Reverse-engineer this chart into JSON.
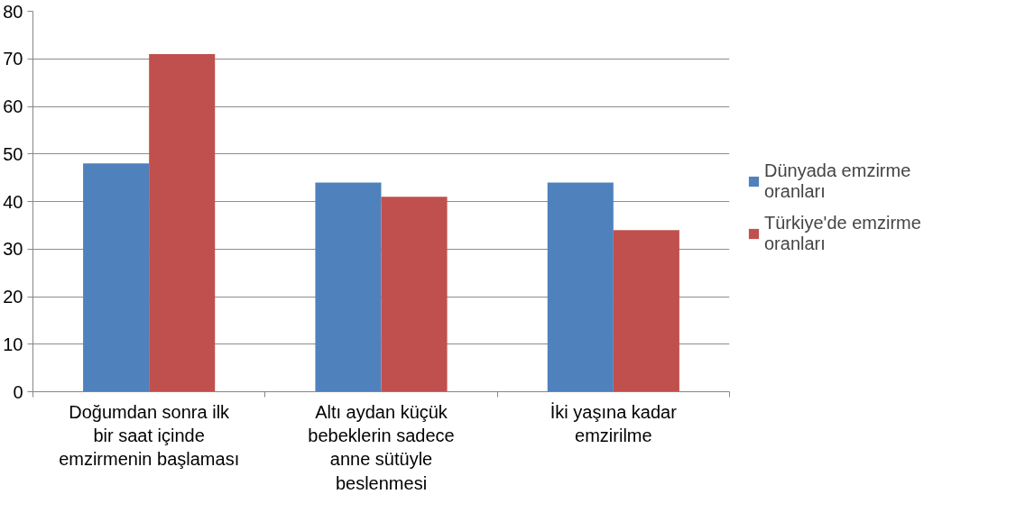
{
  "chart_data": {
    "type": "bar",
    "categories": [
      "Doğumdan sonra ilk bir saat içinde emzirmenin başlaması",
      "Altı aydan küçük bebeklerin sadece anne sütüyle beslenmesi",
      "İki yaşına kadar emzirilme"
    ],
    "series": [
      {
        "name": "Dünyada emzirme oranları",
        "color": "#4f81bd",
        "values": [
          48,
          44,
          44
        ]
      },
      {
        "name": "Türkiye'de emzirme oranları",
        "color": "#c0504d",
        "values": [
          71,
          41,
          34
        ]
      }
    ],
    "ylim": [
      0,
      80
    ],
    "yticks": [
      0,
      10,
      20,
      30,
      40,
      50,
      60,
      70,
      80
    ],
    "grid": "y",
    "legend": "right"
  }
}
